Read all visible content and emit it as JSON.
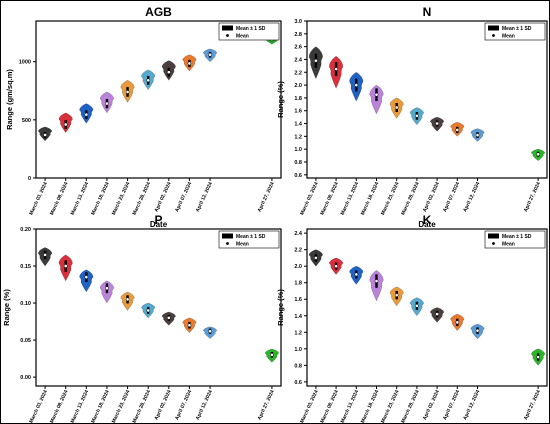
{
  "colors": [
    "#3a3a3a",
    "#d9303b",
    "#1f62c4",
    "#ba82d9",
    "#e79b3c",
    "#55aacc",
    "#4a3f3f",
    "#e8792f",
    "#5a9bd6",
    "#2bb52b"
  ],
  "chart_data": [
    {
      "type": "violin",
      "title": "AGB",
      "xlabel": "Date",
      "ylabel": "Range (gm/sq.m)",
      "categories": [
        "March 03, 2024",
        "March 08, 2024",
        "March 13, 2024",
        "March 18, 2024",
        "March 23, 2024",
        "March 28, 2024",
        "April 02, 2024",
        "April 07, 2024",
        "April 12, 2024",
        "April 27, 2024"
      ],
      "dates": [
        "2024-03-03",
        "2024-03-08",
        "2024-03-13",
        "2024-03-18",
        "2024-03-23",
        "2024-03-28",
        "2024-04-02",
        "2024-04-07",
        "2024-04-12",
        "2024-04-27"
      ],
      "mean": [
        370,
        460,
        545,
        640,
        740,
        840,
        910,
        985,
        1060,
        1190
      ],
      "min": [
        320,
        390,
        470,
        560,
        650,
        760,
        840,
        920,
        1000,
        1150
      ],
      "max": [
        440,
        560,
        640,
        740,
        840,
        930,
        1010,
        1060,
        1110,
        1220
      ],
      "ylim": [
        0,
        1350
      ],
      "yticks": [
        0,
        500,
        1000
      ],
      "legend": [
        "Mean ± 1 SD",
        "Mean"
      ],
      "legend_position": "top-right"
    },
    {
      "type": "violin",
      "title": "N",
      "xlabel": "Date",
      "ylabel": "Range (%)",
      "categories": [
        "March 03, 2024",
        "March 08, 2024",
        "March 13, 2024",
        "March 18, 2024",
        "March 23, 2024",
        "March 28, 2024",
        "April 02, 2024",
        "April 07, 2024",
        "April 12, 2024",
        "April 27, 2024"
      ],
      "dates": [
        "2024-03-03",
        "2024-03-08",
        "2024-03-13",
        "2024-03-18",
        "2024-03-23",
        "2024-03-28",
        "2024-04-02",
        "2024-04-07",
        "2024-04-12",
        "2024-04-27"
      ],
      "mean": [
        2.38,
        2.25,
        2.0,
        1.85,
        1.65,
        1.52,
        1.4,
        1.3,
        1.22,
        0.92
      ],
      "min": [
        2.1,
        1.95,
        1.75,
        1.55,
        1.48,
        1.38,
        1.28,
        1.2,
        1.12,
        0.82
      ],
      "max": [
        2.6,
        2.45,
        2.2,
        2.0,
        1.8,
        1.65,
        1.5,
        1.42,
        1.32,
        1.0
      ],
      "ylim": [
        0.55,
        3.0
      ],
      "yticks": [
        0.6,
        0.8,
        1.0,
        1.2,
        1.4,
        1.6,
        1.8,
        2.0,
        2.2,
        2.4,
        2.6,
        2.8,
        3.0
      ],
      "legend": [
        "Mean ± 1 SD",
        "Mean"
      ],
      "legend_position": "top-right"
    },
    {
      "type": "violin",
      "title": "P",
      "xlabel": "Date",
      "ylabel": "Range (%)",
      "categories": [
        "March 03, 2024",
        "March 08, 2024",
        "March 13, 2024",
        "March 18, 2024",
        "March 23, 2024",
        "March 28, 2024",
        "April 02, 2024",
        "April 07, 2024",
        "April 12, 2024",
        "April 27, 2024"
      ],
      "dates": [
        "2024-03-03",
        "2024-03-08",
        "2024-03-13",
        "2024-03-18",
        "2024-03-23",
        "2024-03-28",
        "2024-04-02",
        "2024-04-07",
        "2024-04-12",
        "2024-04-27"
      ],
      "mean": [
        0.165,
        0.15,
        0.135,
        0.12,
        0.105,
        0.09,
        0.08,
        0.07,
        0.062,
        0.03
      ],
      "min": [
        0.15,
        0.13,
        0.115,
        0.1,
        0.09,
        0.08,
        0.07,
        0.06,
        0.052,
        0.02
      ],
      "max": [
        0.175,
        0.165,
        0.145,
        0.13,
        0.115,
        0.1,
        0.088,
        0.08,
        0.068,
        0.038
      ],
      "ylim": [
        -0.012,
        0.2
      ],
      "yticks": [
        0.0,
        0.05,
        0.1,
        0.15,
        0.2
      ],
      "ytick_labels": [
        "0.00",
        "0.05",
        "0.10",
        "0.15",
        "0.20"
      ],
      "legend": [
        "Mean ± 1 SD",
        "Mean"
      ],
      "legend_position": "top-right"
    },
    {
      "type": "violin",
      "title": "K",
      "xlabel": "Date",
      "ylabel": "Range (%)",
      "categories": [
        "March 03, 2024",
        "March 08, 2024",
        "March 13, 2024",
        "March 18, 2024",
        "March 23, 2024",
        "March 28, 2024",
        "April 02, 2024",
        "April 07, 2024",
        "April 12, 2024",
        "April 27, 2024"
      ],
      "dates": [
        "2024-03-03",
        "2024-03-08",
        "2024-03-13",
        "2024-03-18",
        "2024-03-23",
        "2024-03-28",
        "2024-04-02",
        "2024-04-07",
        "2024-04-12",
        "2024-04-27"
      ],
      "mean": [
        2.1,
        2.0,
        1.9,
        1.82,
        1.65,
        1.52,
        1.42,
        1.32,
        1.22,
        0.9
      ],
      "min": [
        2.0,
        1.9,
        1.78,
        1.58,
        1.52,
        1.4,
        1.32,
        1.22,
        1.12,
        0.8
      ],
      "max": [
        2.2,
        2.1,
        2.0,
        1.95,
        1.75,
        1.62,
        1.5,
        1.42,
        1.3,
        1.0
      ],
      "ylim": [
        0.55,
        2.45
      ],
      "yticks": [
        0.6,
        0.8,
        1.0,
        1.2,
        1.4,
        1.6,
        1.8,
        2.0,
        2.2,
        2.4
      ],
      "legend": [
        "Mean ± 1 SD",
        "Mean"
      ],
      "legend_position": "top-right"
    }
  ]
}
